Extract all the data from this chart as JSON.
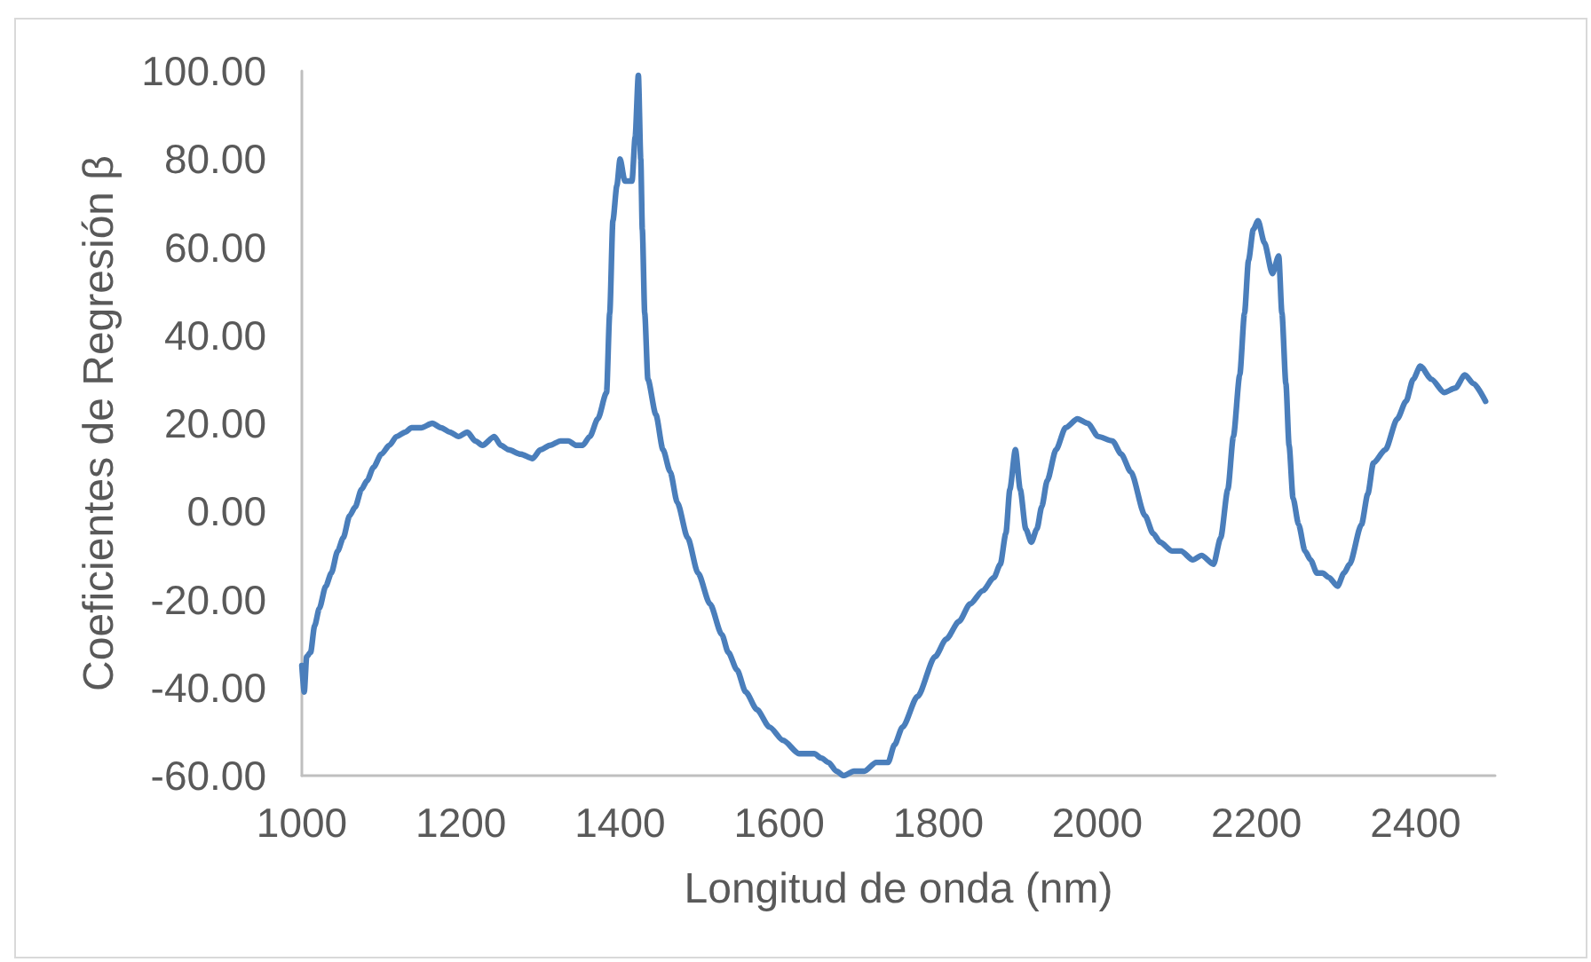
{
  "chart_data": {
    "type": "line",
    "xlabel": "Longitud de onda (nm)",
    "ylabel": "Coeficientes de Regresión β",
    "x": [
      1000,
      1003,
      1006,
      1011,
      1016,
      1022,
      1030,
      1037,
      1045,
      1052,
      1060,
      1067,
      1075,
      1082,
      1090,
      1100,
      1110,
      1119,
      1130,
      1138,
      1150,
      1164,
      1175,
      1186,
      1197,
      1208,
      1218,
      1227,
      1242,
      1250,
      1260,
      1275,
      1290,
      1300,
      1312,
      1325,
      1335,
      1345,
      1353,
      1362,
      1372,
      1383,
      1387,
      1391,
      1396,
      1400,
      1406,
      1415,
      1419,
      1423,
      1426,
      1428,
      1431,
      1435,
      1445,
      1454,
      1463,
      1472,
      1485,
      1498,
      1513,
      1528,
      1536,
      1547,
      1558,
      1572,
      1588,
      1605,
      1625,
      1644,
      1653,
      1662,
      1672,
      1681,
      1694,
      1707,
      1722,
      1737,
      1745,
      1755,
      1774,
      1796,
      1810,
      1826,
      1840,
      1856,
      1870,
      1878,
      1885,
      1890,
      1897,
      1903,
      1910,
      1917,
      1924,
      1930,
      1937,
      1948,
      1960,
      1975,
      1988,
      2001,
      2019,
      2030,
      2042,
      2060,
      2070,
      2079,
      2094,
      2105,
      2120,
      2131,
      2146,
      2155,
      2164,
      2171,
      2179,
      2185,
      2190,
      2196,
      2202,
      2210,
      2220,
      2228,
      2232,
      2237,
      2241,
      2246,
      2253,
      2261,
      2268,
      2276,
      2283,
      2291,
      2302,
      2310,
      2317,
      2332,
      2340,
      2347,
      2362,
      2377,
      2388,
      2397,
      2406,
      2420,
      2436,
      2450,
      2462,
      2473,
      2488
    ],
    "series": [
      {
        "color": "#4a7ebb",
        "values": [
          -35,
          -41,
          -33,
          -32,
          -26,
          -22,
          -17,
          -14,
          -9,
          -6,
          -1,
          1,
          5,
          7,
          10,
          13,
          15,
          17,
          18,
          19,
          19,
          20,
          19,
          18,
          17,
          18,
          16,
          15,
          17,
          15,
          14,
          13,
          12,
          14,
          15,
          16,
          16,
          15,
          15,
          17,
          21,
          27,
          45,
          66,
          74,
          80,
          75,
          75,
          85,
          99,
          80,
          64,
          45,
          30,
          22,
          14,
          9,
          2,
          -6,
          -14,
          -21,
          -28,
          -32,
          -36,
          -41,
          -45,
          -49,
          -52,
          -55,
          -55,
          -56,
          -57,
          -59,
          -60,
          -59,
          -59,
          -57,
          -57,
          -53,
          -49,
          -42,
          -33,
          -29,
          -25,
          -21,
          -18,
          -15,
          -12,
          -5,
          5,
          14,
          5,
          -4,
          -7,
          -4,
          1,
          7,
          14,
          19,
          21,
          20,
          17,
          16,
          13,
          9,
          -1,
          -5,
          -7,
          -9,
          -9,
          -11,
          -10,
          -12,
          -6,
          5,
          17,
          31,
          45,
          57,
          64,
          66,
          61,
          54,
          58,
          45,
          29,
          15,
          3,
          -3,
          -9,
          -11,
          -14,
          -14,
          -15,
          -17,
          -14,
          -12,
          -3,
          4,
          11,
          14,
          21,
          25,
          30,
          33,
          30,
          27,
          28,
          31,
          29,
          25
        ]
      }
    ],
    "xlim": [
      1000,
      2500
    ],
    "xticks": [
      1000,
      1200,
      1400,
      1600,
      1800,
      2000,
      2200,
      2400
    ],
    "ylim": [
      -60,
      100
    ],
    "yticks": [
      {
        "value": -60,
        "label": "-60.00"
      },
      {
        "value": -40,
        "label": "-40.00"
      },
      {
        "value": -20,
        "label": "-20.00"
      },
      {
        "value": 0,
        "label": "0.00"
      },
      {
        "value": 20,
        "label": "20.00"
      },
      {
        "value": 40,
        "label": "40.00"
      },
      {
        "value": 60,
        "label": "60.00"
      },
      {
        "value": 80,
        "label": "80.00"
      },
      {
        "value": 100,
        "label": "100.00"
      }
    ],
    "grid": false,
    "marker": "none",
    "line_style": "solid"
  }
}
